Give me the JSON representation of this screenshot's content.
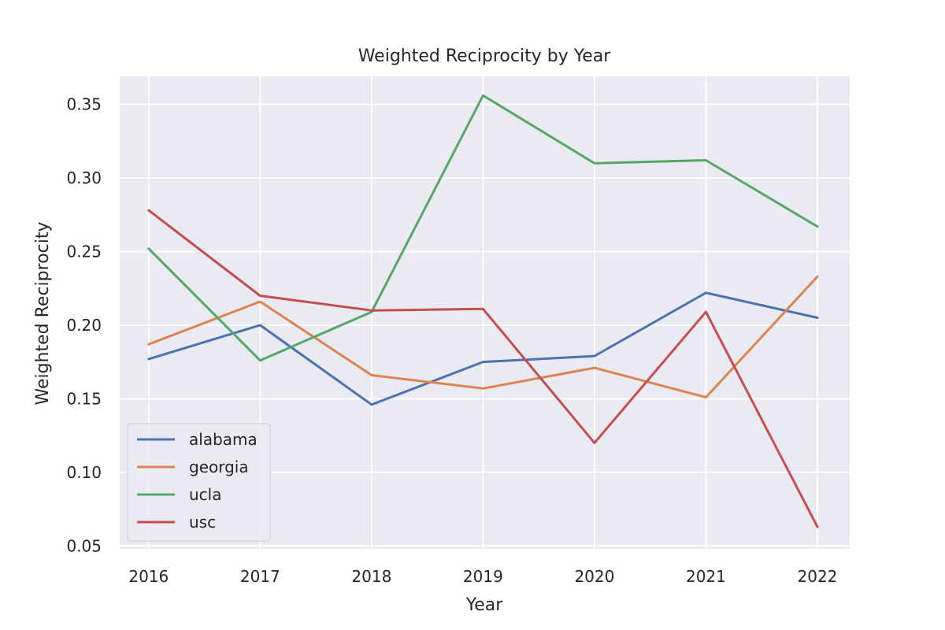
{
  "chart_data": {
    "type": "line",
    "title": "Weighted Reciprocity by Year",
    "xlabel": "Year",
    "ylabel": "Weighted Reciprocity",
    "x": [
      2016,
      2017,
      2018,
      2019,
      2020,
      2021,
      2022
    ],
    "x_tick_labels": [
      "2016",
      "2017",
      "2018",
      "2019",
      "2020",
      "2021",
      "2022"
    ],
    "y_ticks": [
      0.05,
      0.1,
      0.15,
      0.2,
      0.25,
      0.3,
      0.35
    ],
    "y_tick_labels": [
      "0.05",
      "0.10",
      "0.15",
      "0.20",
      "0.25",
      "0.30",
      "0.35"
    ],
    "xlim": [
      2015.74,
      2022.29
    ],
    "ylim": [
      0.048,
      0.369
    ],
    "grid": true,
    "legend_position": "lower-left",
    "series": [
      {
        "name": "alabama",
        "color": "#4c72b0",
        "values": [
          0.177,
          0.2,
          0.146,
          0.175,
          0.179,
          0.222,
          0.205
        ]
      },
      {
        "name": "georgia",
        "color": "#dd8452",
        "values": [
          0.187,
          0.216,
          0.166,
          0.157,
          0.171,
          0.151,
          0.233
        ]
      },
      {
        "name": "ucla",
        "color": "#55a868",
        "values": [
          0.252,
          0.176,
          0.209,
          0.356,
          0.31,
          0.312,
          0.267
        ]
      },
      {
        "name": "usc",
        "color": "#c44e52",
        "values": [
          0.278,
          0.22,
          0.21,
          0.211,
          0.12,
          0.209,
          0.063
        ]
      }
    ]
  }
}
